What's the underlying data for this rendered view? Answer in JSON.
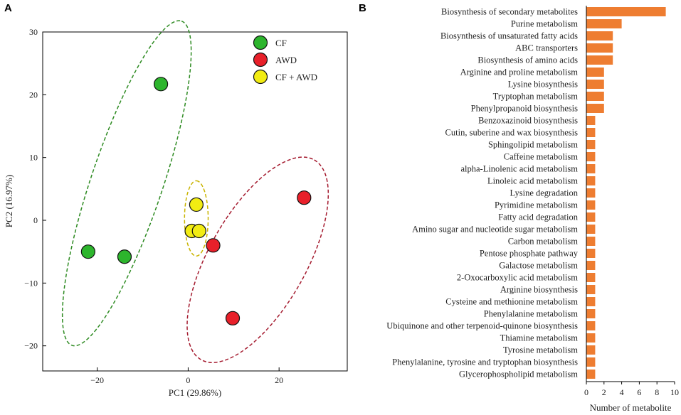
{
  "panels": {
    "a_label": "A",
    "b_label": "B"
  },
  "chart_data": [
    {
      "type": "scatter",
      "xlabel": "PC1 (29.86%)",
      "ylabel": "PC2 (16.97%)",
      "xlim": [
        -32,
        35
      ],
      "ylim": [
        -24,
        30
      ],
      "x_ticks": [
        -20,
        0,
        20
      ],
      "y_ticks": [
        -20,
        -10,
        0,
        10,
        20,
        30
      ],
      "legend_position": "top-right",
      "series": [
        {
          "name": "CF",
          "color": "#2db52d",
          "ellipse_color": "#2e8b22",
          "points": [
            {
              "x": -6,
              "y": 21.7
            },
            {
              "x": -22,
              "y": -5
            },
            {
              "x": -14,
              "y": -5.8
            }
          ],
          "ellipse": {
            "cx": -13.5,
            "cy": 5.9,
            "rx": 28.5,
            "ry": 7.3,
            "angle_deg": 65
          }
        },
        {
          "name": "AWD",
          "color": "#e8202a",
          "ellipse_color": "#a51c30",
          "points": [
            {
              "x": 25.5,
              "y": 3.6
            },
            {
              "x": 5.5,
              "y": -4
            },
            {
              "x": 9.8,
              "y": -15.6
            }
          ],
          "ellipse": {
            "cx": 15.3,
            "cy": -6.3,
            "rx": 20.2,
            "ry": 9.2,
            "angle_deg": 52
          }
        },
        {
          "name": "CF + AWD",
          "color": "#f2ec12",
          "ellipse_color": "#c9b400",
          "points": [
            {
              "x": 1.8,
              "y": 2.5
            },
            {
              "x": 0.8,
              "y": -1.7
            },
            {
              "x": 2.4,
              "y": -1.7
            }
          ],
          "ellipse": {
            "cx": 1.8,
            "cy": 0.3,
            "rx": 6,
            "ry": 2.6,
            "angle_deg": 90
          }
        }
      ]
    },
    {
      "type": "bar",
      "orientation": "horizontal",
      "xlabel": "Number of metabolite",
      "xlim": [
        0,
        10
      ],
      "x_ticks": [
        0,
        2,
        4,
        6,
        8,
        10
      ],
      "color": "#ee7d31",
      "categories": [
        "Biosynthesis of secondary metabolites",
        "Purine metabolism",
        "Biosynthesis of unsaturated fatty acids",
        "ABC transporters",
        "Biosynthesis of amino acids",
        "Arginine and proline metabolism",
        "Lysine biosynthesis",
        "Tryptophan metabolism",
        "Phenylpropanoid biosynthesis",
        "Benzoxazinoid biosynthesis",
        "Cutin, suberine and wax biosynthesis",
        "Sphingolipid metabolism",
        "Caffeine metabolism",
        "alpha-Linolenic acid metabolism",
        "Linoleic acid metabolism",
        "Lysine degradation",
        "Pyrimidine metabolism",
        "Fatty acid degradation",
        "Amino sugar and nucleotide sugar metabolism",
        "Carbon metabolism",
        "Pentose phosphate pathway",
        "Galactose metabolism",
        "2-Oxocarboxylic acid metabolism",
        "Arginine biosynthesis",
        "Cysteine and methionine metabolism",
        "Phenylalanine metabolism",
        "Ubiquinone and other terpenoid-quinone biosynthesis",
        "Thiamine metabolism",
        "Tyrosine metabolism",
        "Phenylalanine, tyrosine and tryptophan biosynthesis",
        "Glycerophospholipid metabolism"
      ],
      "values": [
        9,
        4,
        3,
        3,
        3,
        2,
        2,
        2,
        2,
        1,
        1,
        1,
        1,
        1,
        1,
        1,
        1,
        1,
        1,
        1,
        1,
        1,
        1,
        1,
        1,
        1,
        1,
        1,
        1,
        1,
        1
      ]
    }
  ]
}
